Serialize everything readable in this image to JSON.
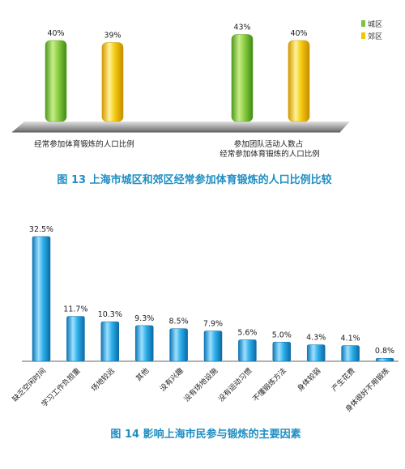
{
  "chart_data": [
    {
      "type": "bar",
      "title": "图 13 上海市城区和郊区经常参加体育锻炼的人口比例比较",
      "categories": [
        "经常参加体育锻炼的人口比例",
        "参加团队活动人数占\n经常参加体育锻炼的人口比例"
      ],
      "series": [
        {
          "name": "城区",
          "values": [
            40,
            43
          ],
          "labels": [
            "40%",
            "43%"
          ],
          "color": "#7dc242"
        },
        {
          "name": "郊区",
          "values": [
            39,
            40
          ],
          "labels": [
            "39%",
            "40%"
          ],
          "color": "#f5c400"
        }
      ],
      "ylim": [
        0,
        50
      ],
      "legend": "top-right",
      "grid": false
    },
    {
      "type": "bar",
      "title": "图 14   影响上海市民参与锻炼的主要因素",
      "categories": [
        "缺乏空闲时间",
        "学习工作负担重",
        "场地较远",
        "其他",
        "没有兴趣",
        "没有场地设施",
        "没有运动习惯",
        "不懂锻炼方法",
        "身体较弱",
        "产生花费",
        "身体很好不用锻炼"
      ],
      "values": [
        32.5,
        11.7,
        10.3,
        9.3,
        8.5,
        7.9,
        5.6,
        5.0,
        4.3,
        4.1,
        0.8
      ],
      "labels": [
        "32.5%",
        "11.7%",
        "10.3%",
        "9.3%",
        "8.5%",
        "7.9%",
        "5.6%",
        "5.0%",
        "4.3%",
        "4.1%",
        "0.8%"
      ],
      "color": "#1aa6e0",
      "ylim": [
        0,
        35
      ],
      "grid": false
    }
  ]
}
